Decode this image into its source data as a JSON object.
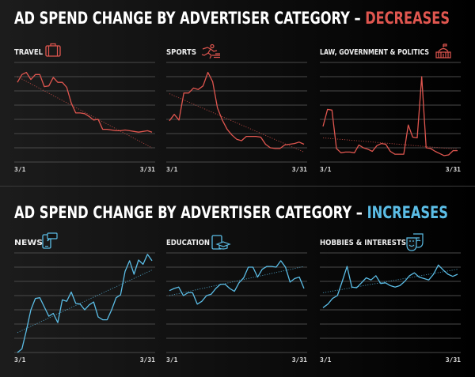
{
  "sections": [
    {
      "title_prefix": "AD SPEND CHANGE BY ADVERTISER CATEGORY – ",
      "title_accent": "DECREASES",
      "accent_color": "#e0564f"
    },
    {
      "title_prefix": "AD SPEND CHANGE BY ADVERTISER CATEGORY – ",
      "title_accent": "INCREASES",
      "accent_color": "#5bbde6"
    }
  ],
  "chart_data": [
    {
      "type": "line",
      "title": "TRAVEL",
      "icon": "suitcase-icon",
      "color": "#e0564f",
      "x_labels": [
        "3/1",
        "3/31"
      ],
      "ylim": [
        0,
        7
      ],
      "grid": true,
      "values": [
        5.6,
        6.15,
        6.3,
        5.8,
        6.15,
        6.15,
        5.3,
        5.35,
        5.95,
        5.6,
        5.6,
        5.25,
        4.15,
        3.45,
        3.45,
        3.4,
        3.2,
        2.95,
        3.0,
        2.3,
        2.3,
        2.25,
        2.2,
        2.2,
        2.25,
        2.2,
        2.15,
        2.1,
        2.15,
        2.2,
        2.1
      ],
      "trend": [
        6.0,
        1.0
      ]
    },
    {
      "type": "line",
      "title": "SPORTS",
      "icon": "runner-icon",
      "color": "#e0564f",
      "x_labels": [
        "3/1",
        "3/31"
      ],
      "ylim": [
        0,
        7
      ],
      "grid": true,
      "values": [
        2.9,
        3.35,
        2.95,
        4.85,
        4.85,
        5.2,
        5.1,
        5.35,
        6.3,
        5.65,
        3.8,
        2.95,
        2.3,
        1.9,
        1.6,
        1.5,
        1.8,
        1.8,
        1.8,
        1.75,
        1.25,
        1.0,
        0.95,
        0.95,
        1.2,
        1.25,
        1.3,
        1.4,
        1.25
      ],
      "trend": [
        4.8,
        0.7
      ]
    },
    {
      "type": "line",
      "title": "LAW, GOVERNMENT & POLITICS",
      "icon": "capitol-icon",
      "color": "#e0564f",
      "x_labels": [
        "3/1",
        "3/31"
      ],
      "ylim": [
        0,
        7
      ],
      "grid": true,
      "values": [
        2.5,
        3.7,
        3.65,
        0.95,
        0.65,
        0.7,
        0.7,
        0.65,
        1.2,
        1.0,
        0.9,
        0.75,
        1.15,
        1.3,
        1.25,
        0.75,
        0.55,
        0.55,
        0.55,
        2.6,
        1.75,
        1.7,
        6.0,
        1.0,
        0.95,
        0.75,
        0.6,
        0.45,
        0.5,
        0.8,
        0.8
      ],
      "trend": [
        1.7,
        0.9
      ]
    },
    {
      "type": "line",
      "title": "NEWS",
      "icon": "news-phone-icon",
      "color": "#5bbde6",
      "x_labels": [
        "3/1",
        "3/31"
      ],
      "ylim": [
        0,
        7
      ],
      "grid": true,
      "values": [
        0,
        0.25,
        1.55,
        3.0,
        3.8,
        3.85,
        3.2,
        2.55,
        2.75,
        2.1,
        3.7,
        3.6,
        4.25,
        3.45,
        3.4,
        3.0,
        3.35,
        3.55,
        2.5,
        2.3,
        2.3,
        3.0,
        3.85,
        4.05,
        5.7,
        6.45,
        5.5,
        6.5,
        6.2,
        6.9,
        6.45
      ],
      "trend": [
        1.4,
        5.8
      ]
    },
    {
      "type": "line",
      "title": "EDUCATION",
      "icon": "graduation-tablet-icon",
      "color": "#5bbde6",
      "x_labels": [
        "3/1",
        "3/31"
      ],
      "ylim": [
        0,
        7
      ],
      "grid": true,
      "values": [
        4.35,
        4.5,
        4.6,
        4.0,
        4.2,
        4.2,
        3.4,
        3.6,
        4.0,
        4.1,
        4.5,
        4.8,
        4.8,
        4.5,
        4.3,
        4.9,
        5.25,
        6.0,
        6.0,
        5.3,
        5.85,
        6.05,
        6.05,
        6.0,
        6.45,
        6.0,
        4.95,
        5.2,
        5.3,
        4.5
      ],
      "trend": [
        4.0,
        6.05
      ]
    },
    {
      "type": "line",
      "title": "HOBBIES & INTERESTS",
      "icon": "theater-masks-icon",
      "color": "#5bbde6",
      "x_labels": [
        "3/1",
        "3/31"
      ],
      "ylim": [
        0,
        7
      ],
      "grid": true,
      "values": [
        3.15,
        3.4,
        3.8,
        4.0,
        5.0,
        6.05,
        4.6,
        4.55,
        4.9,
        5.25,
        5.1,
        5.4,
        4.85,
        4.9,
        4.7,
        4.6,
        4.7,
        5.0,
        5.4,
        5.6,
        5.3,
        5.2,
        5.1,
        5.5,
        6.15,
        5.8,
        5.5,
        5.35,
        5.5
      ],
      "trend": [
        4.2,
        5.85
      ]
    }
  ]
}
